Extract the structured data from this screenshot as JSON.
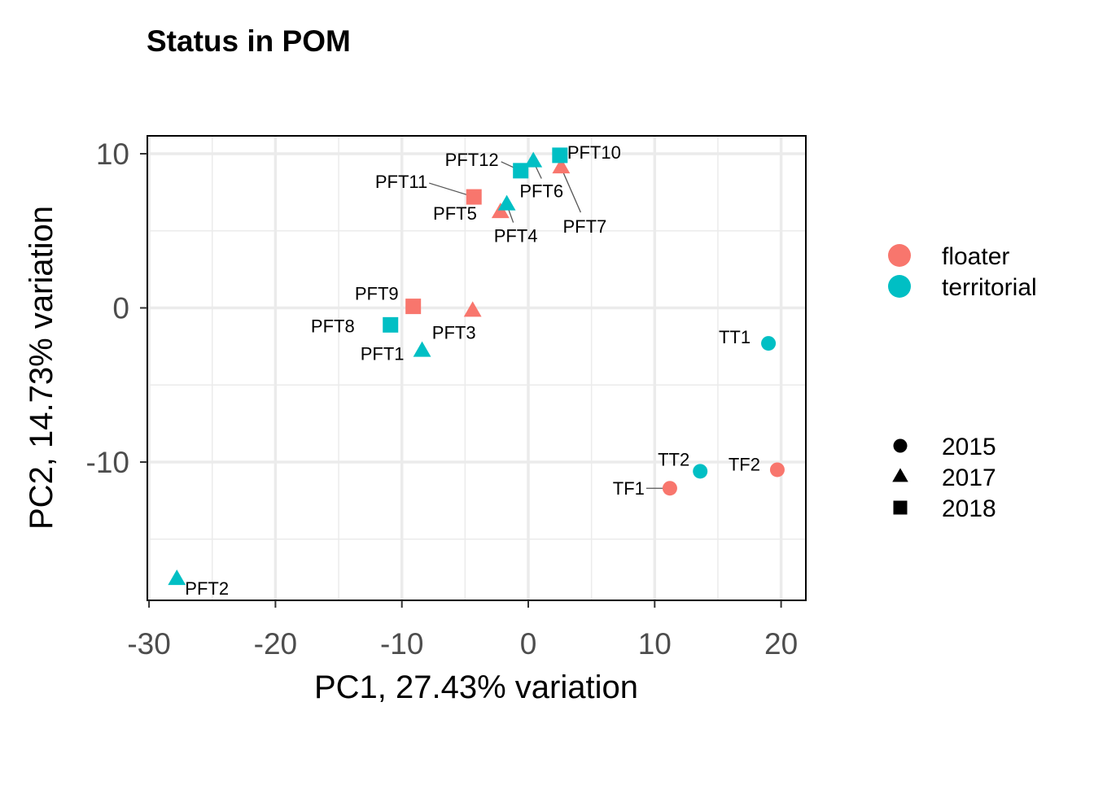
{
  "chart_data": {
    "type": "scatter",
    "title": "Status in POM",
    "xlabel": "PC1, 27.43% variation",
    "ylabel": "PC2, 14.73% variation",
    "xlim": [
      -30,
      22
    ],
    "ylim": [
      -19,
      11.2
    ],
    "xticks": [
      -30,
      -20,
      -10,
      0,
      10,
      20
    ],
    "xtick_labels": [
      "-30",
      "-20",
      "-10",
      "0",
      "10",
      "20"
    ],
    "yticks": [
      10,
      0,
      -10
    ],
    "ytick_labels": [
      "10",
      "0",
      "-10"
    ],
    "grid": true,
    "legend_position": "right",
    "color_legend": [
      {
        "label": "floater",
        "color": "#F8766D"
      },
      {
        "label": "territorial",
        "color": "#00BFC4"
      }
    ],
    "shape_legend": [
      {
        "label": "2015",
        "shape": "circle"
      },
      {
        "label": "2017",
        "shape": "triangle"
      },
      {
        "label": "2018",
        "shape": "square"
      }
    ],
    "points": [
      {
        "label": "PFT2",
        "x": -27.8,
        "y": -17.6,
        "status": "territorial",
        "year": "2017"
      },
      {
        "label": "PFT1",
        "x": -8.4,
        "y": -2.8,
        "status": "territorial",
        "year": "2017"
      },
      {
        "label": "PFT8",
        "x": -10.9,
        "y": -1.1,
        "status": "territorial",
        "year": "2018"
      },
      {
        "label": "PFT9",
        "x": -9.1,
        "y": 0.1,
        "status": "floater",
        "year": "2018"
      },
      {
        "label": "PFT3",
        "x": -4.4,
        "y": -0.2,
        "status": "floater",
        "year": "2017"
      },
      {
        "label": "PFT11",
        "x": -4.3,
        "y": 7.2,
        "status": "floater",
        "year": "2018"
      },
      {
        "label": "PFT5",
        "x": -2.2,
        "y": 6.2,
        "status": "floater",
        "year": "2017"
      },
      {
        "label": "PFT4",
        "x": -1.7,
        "y": 6.7,
        "status": "territorial",
        "year": "2017"
      },
      {
        "label": "PFT12",
        "x": -0.6,
        "y": 8.9,
        "status": "territorial",
        "year": "2018"
      },
      {
        "label": "PFT6",
        "x": 0.4,
        "y": 9.5,
        "status": "territorial",
        "year": "2017"
      },
      {
        "label": "PFT7",
        "x": 2.6,
        "y": 9.1,
        "status": "floater",
        "year": "2017"
      },
      {
        "label": "PFT10",
        "x": 2.5,
        "y": 9.9,
        "status": "territorial",
        "year": "2018"
      },
      {
        "label": "TF1",
        "x": 11.2,
        "y": -11.7,
        "status": "floater",
        "year": "2015"
      },
      {
        "label": "TT2",
        "x": 13.6,
        "y": -10.6,
        "status": "territorial",
        "year": "2015"
      },
      {
        "label": "TF2",
        "x": 19.7,
        "y": -10.5,
        "status": "floater",
        "year": "2015"
      },
      {
        "label": "TT1",
        "x": 19.0,
        "y": -2.3,
        "status": "territorial",
        "year": "2015"
      }
    ]
  }
}
